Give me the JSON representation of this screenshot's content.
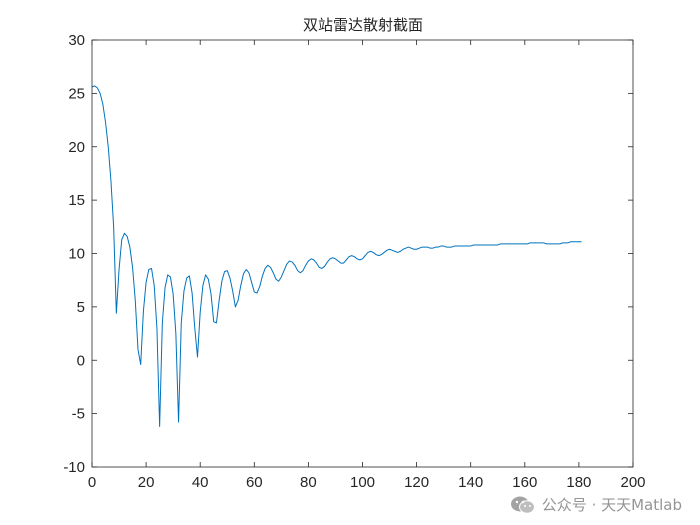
{
  "chart_data": {
    "type": "line",
    "title": "双站雷达散射截面",
    "xlabel": "",
    "ylabel": "",
    "xlim": [
      0,
      200
    ],
    "ylim": [
      -10,
      30
    ],
    "x_ticks": [
      0,
      20,
      40,
      60,
      80,
      100,
      120,
      140,
      160,
      180,
      200
    ],
    "y_ticks": [
      -10,
      -5,
      0,
      5,
      10,
      15,
      20,
      25,
      30
    ],
    "grid": false,
    "box": true,
    "series": [
      {
        "color": "#0072BD",
        "points": [
          [
            0,
            25.6
          ],
          [
            1,
            25.7
          ],
          [
            2,
            25.5
          ],
          [
            3,
            25.0
          ],
          [
            4,
            24.0
          ],
          [
            5,
            22.3
          ],
          [
            6,
            20.0
          ],
          [
            7,
            16.8
          ],
          [
            8,
            12.5
          ],
          [
            9,
            4.4
          ],
          [
            10,
            8.5
          ],
          [
            11,
            11.3
          ],
          [
            12,
            11.9
          ],
          [
            13,
            11.6
          ],
          [
            14,
            10.6
          ],
          [
            15,
            8.7
          ],
          [
            16,
            5.6
          ],
          [
            17,
            1.0
          ],
          [
            18,
            -0.4
          ],
          [
            19,
            4.6
          ],
          [
            20,
            7.3
          ],
          [
            21,
            8.5
          ],
          [
            22,
            8.6
          ],
          [
            23,
            7.0
          ],
          [
            24,
            3.0
          ],
          [
            25,
            -6.2
          ],
          [
            26,
            3.5
          ],
          [
            27,
            6.8
          ],
          [
            28,
            8.0
          ],
          [
            29,
            7.8
          ],
          [
            30,
            6.2
          ],
          [
            31,
            2.5
          ],
          [
            32,
            -5.8
          ],
          [
            33,
            3.5
          ],
          [
            34,
            6.5
          ],
          [
            35,
            7.7
          ],
          [
            36,
            7.9
          ],
          [
            37,
            6.3
          ],
          [
            38,
            3.0
          ],
          [
            39,
            0.3
          ],
          [
            40,
            4.5
          ],
          [
            41,
            7.0
          ],
          [
            42,
            8.0
          ],
          [
            43,
            7.6
          ],
          [
            44,
            6.2
          ],
          [
            45,
            3.6
          ],
          [
            46,
            3.5
          ],
          [
            47,
            5.6
          ],
          [
            48,
            7.4
          ],
          [
            49,
            8.3
          ],
          [
            50,
            8.4
          ],
          [
            51,
            7.7
          ],
          [
            52,
            6.5
          ],
          [
            53,
            5.0
          ],
          [
            54,
            5.6
          ],
          [
            55,
            7.0
          ],
          [
            56,
            8.1
          ],
          [
            57,
            8.5
          ],
          [
            58,
            8.2
          ],
          [
            59,
            7.3
          ],
          [
            60,
            6.4
          ],
          [
            61,
            6.3
          ],
          [
            62,
            6.9
          ],
          [
            63,
            7.9
          ],
          [
            64,
            8.6
          ],
          [
            65,
            8.9
          ],
          [
            66,
            8.7
          ],
          [
            67,
            8.2
          ],
          [
            68,
            7.6
          ],
          [
            69,
            7.4
          ],
          [
            70,
            7.8
          ],
          [
            71,
            8.4
          ],
          [
            72,
            9.0
          ],
          [
            73,
            9.3
          ],
          [
            74,
            9.2
          ],
          [
            75,
            8.9
          ],
          [
            76,
            8.4
          ],
          [
            77,
            8.2
          ],
          [
            78,
            8.4
          ],
          [
            79,
            8.9
          ],
          [
            80,
            9.3
          ],
          [
            81,
            9.5
          ],
          [
            82,
            9.4
          ],
          [
            83,
            9.1
          ],
          [
            84,
            8.7
          ],
          [
            85,
            8.6
          ],
          [
            86,
            8.8
          ],
          [
            87,
            9.2
          ],
          [
            88,
            9.5
          ],
          [
            89,
            9.6
          ],
          [
            90,
            9.5
          ],
          [
            91,
            9.3
          ],
          [
            92,
            9.1
          ],
          [
            93,
            9.1
          ],
          [
            94,
            9.4
          ],
          [
            95,
            9.7
          ],
          [
            96,
            9.8
          ],
          [
            97,
            9.7
          ],
          [
            98,
            9.5
          ],
          [
            99,
            9.4
          ],
          [
            100,
            9.5
          ],
          [
            101,
            9.8
          ],
          [
            102,
            10.1
          ],
          [
            103,
            10.2
          ],
          [
            104,
            10.1
          ],
          [
            105,
            9.9
          ],
          [
            106,
            9.8
          ],
          [
            107,
            9.9
          ],
          [
            108,
            10.1
          ],
          [
            109,
            10.3
          ],
          [
            110,
            10.4
          ],
          [
            111,
            10.3
          ],
          [
            112,
            10.2
          ],
          [
            113,
            10.1
          ],
          [
            114,
            10.2
          ],
          [
            115,
            10.4
          ],
          [
            116,
            10.5
          ],
          [
            117,
            10.6
          ],
          [
            118,
            10.5
          ],
          [
            119,
            10.4
          ],
          [
            120,
            10.4
          ],
          [
            121,
            10.5
          ],
          [
            122,
            10.6
          ],
          [
            123,
            10.6
          ],
          [
            124,
            10.6
          ],
          [
            125,
            10.5
          ],
          [
            126,
            10.5
          ],
          [
            127,
            10.6
          ],
          [
            128,
            10.6
          ],
          [
            129,
            10.7
          ],
          [
            130,
            10.7
          ],
          [
            131,
            10.6
          ],
          [
            132,
            10.6
          ],
          [
            133,
            10.6
          ],
          [
            134,
            10.7
          ],
          [
            135,
            10.7
          ],
          [
            136,
            10.7
          ],
          [
            137,
            10.7
          ],
          [
            138,
            10.7
          ],
          [
            139,
            10.7
          ],
          [
            140,
            10.7
          ],
          [
            141,
            10.8
          ],
          [
            142,
            10.8
          ],
          [
            143,
            10.8
          ],
          [
            144,
            10.8
          ],
          [
            145,
            10.8
          ],
          [
            146,
            10.8
          ],
          [
            147,
            10.8
          ],
          [
            148,
            10.8
          ],
          [
            149,
            10.8
          ],
          [
            150,
            10.8
          ],
          [
            151,
            10.9
          ],
          [
            152,
            10.9
          ],
          [
            153,
            10.9
          ],
          [
            154,
            10.9
          ],
          [
            155,
            10.9
          ],
          [
            156,
            10.9
          ],
          [
            157,
            10.9
          ],
          [
            158,
            10.9
          ],
          [
            159,
            10.9
          ],
          [
            160,
            10.9
          ],
          [
            161,
            10.9
          ],
          [
            162,
            11.0
          ],
          [
            163,
            11.0
          ],
          [
            164,
            11.0
          ],
          [
            165,
            11.0
          ],
          [
            166,
            11.0
          ],
          [
            167,
            11.0
          ],
          [
            168,
            10.9
          ],
          [
            169,
            10.9
          ],
          [
            170,
            10.9
          ],
          [
            171,
            10.9
          ],
          [
            172,
            10.9
          ],
          [
            173,
            10.9
          ],
          [
            174,
            11.0
          ],
          [
            175,
            11.0
          ],
          [
            176,
            11.0
          ],
          [
            177,
            11.1
          ],
          [
            178,
            11.1
          ],
          [
            179,
            11.1
          ],
          [
            180,
            11.1
          ],
          [
            181,
            11.1
          ]
        ]
      }
    ]
  },
  "watermark": {
    "text": "公众号 · 天天Matlab",
    "icon": "wechat-icon"
  }
}
